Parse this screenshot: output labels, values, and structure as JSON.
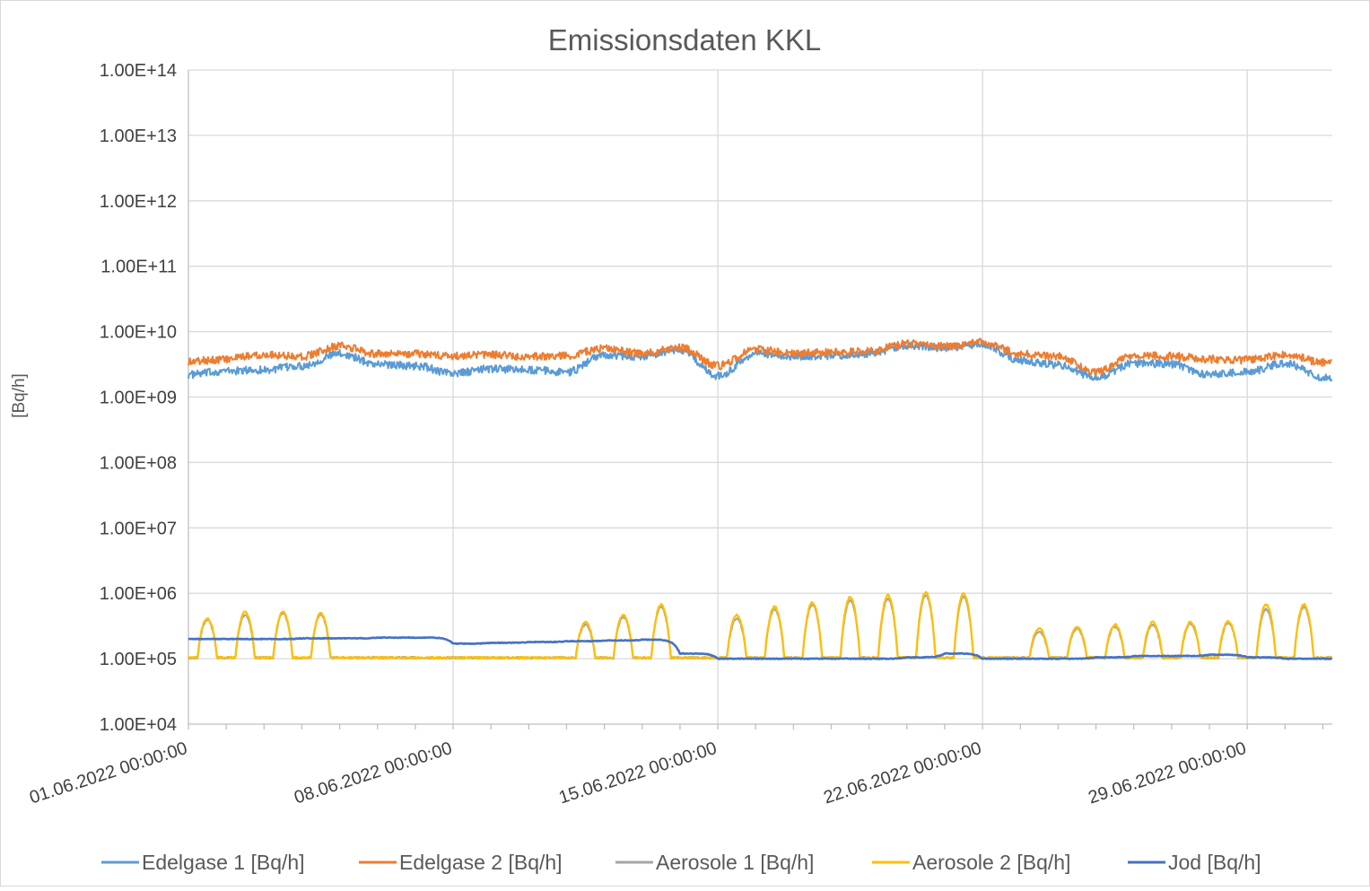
{
  "chart_data": {
    "type": "line",
    "title": "Emissionsdaten KKL",
    "xlabel": "",
    "ylabel": "[Bq/h]",
    "y_scale": "log",
    "ylim": [
      10000,
      100000000000000
    ],
    "xlim": [
      "01.06.2022 00:00:00",
      "01.07.2022 06:00:00"
    ],
    "y_ticks": [
      "1.00E+04",
      "1.00E+05",
      "1.00E+06",
      "1.00E+07",
      "1.00E+08",
      "1.00E+09",
      "1.00E+10",
      "1.00E+11",
      "1.00E+12",
      "1.00E+13",
      "1.00E+14"
    ],
    "x_ticks": [
      "01.06.2022 00:00:00",
      "08.06.2022 00:00:00",
      "15.06.2022 00:00:00",
      "22.06.2022 00:00:00",
      "29.06.2022 00:00:00"
    ],
    "grid": true,
    "legend_position": "bottom",
    "colors": {
      "Edelgase 1 [Bq/h]": "#5b9bd5",
      "Edelgase 2 [Bq/h]": "#ed7d31",
      "Aerosole 1 [Bq/h]": "#a5a5a5",
      "Aerosole 2 [Bq/h]": "#ffc000",
      "Jod [Bq/h]": "#4472c4"
    },
    "series": [
      {
        "name": "Edelgase 1 [Bq/h]",
        "x": [
          "01.06.2022",
          "02.06.2022",
          "03.06.2022",
          "04.06.2022",
          "05.06.2022",
          "06.06.2022",
          "07.06.2022",
          "08.06.2022",
          "09.06.2022",
          "10.06.2022",
          "11.06.2022",
          "12.06.2022",
          "13.06.2022",
          "14.06.2022",
          "15.06.2022",
          "16.06.2022",
          "17.06.2022",
          "18.06.2022",
          "19.06.2022",
          "20.06.2022",
          "21.06.2022",
          "22.06.2022",
          "23.06.2022",
          "24.06.2022",
          "25.06.2022",
          "26.06.2022",
          "27.06.2022",
          "28.06.2022",
          "29.06.2022",
          "30.06.2022",
          "01.07.2022"
        ],
        "values": [
          2200000000.0,
          2500000000.0,
          2600000000.0,
          3000000000.0,
          4600000000.0,
          3200000000.0,
          3000000000.0,
          2300000000.0,
          2700000000.0,
          2600000000.0,
          2400000000.0,
          4400000000.0,
          4200000000.0,
          5300000000.0,
          2100000000.0,
          4600000000.0,
          4200000000.0,
          4300000000.0,
          4600000000.0,
          6200000000.0,
          5700000000.0,
          6500000000.0,
          3600000000.0,
          3100000000.0,
          2000000000.0,
          3300000000.0,
          3200000000.0,
          2200000000.0,
          2400000000.0,
          3300000000.0,
          2000000000.0
        ]
      },
      {
        "name": "Edelgase 2 [Bq/h]",
        "x": [
          "01.06.2022",
          "02.06.2022",
          "03.06.2022",
          "04.06.2022",
          "05.06.2022",
          "06.06.2022",
          "07.06.2022",
          "08.06.2022",
          "09.06.2022",
          "10.06.2022",
          "11.06.2022",
          "12.06.2022",
          "13.06.2022",
          "14.06.2022",
          "15.06.2022",
          "16.06.2022",
          "17.06.2022",
          "18.06.2022",
          "19.06.2022",
          "20.06.2022",
          "21.06.2022",
          "22.06.2022",
          "23.06.2022",
          "24.06.2022",
          "25.06.2022",
          "26.06.2022",
          "27.06.2022",
          "28.06.2022",
          "29.06.2022",
          "30.06.2022",
          "01.07.2022"
        ],
        "values": [
          3500000000.0,
          3800000000.0,
          4500000000.0,
          4200000000.0,
          6000000000.0,
          4600000000.0,
          4600000000.0,
          4200000000.0,
          4400000000.0,
          4200000000.0,
          4300000000.0,
          5500000000.0,
          4600000000.0,
          5700000000.0,
          3000000000.0,
          5300000000.0,
          4600000000.0,
          4800000000.0,
          5000000000.0,
          6500000000.0,
          6000000000.0,
          6800000000.0,
          4600000000.0,
          4200000000.0,
          2400000000.0,
          4300000000.0,
          4200000000.0,
          3800000000.0,
          3700000000.0,
          4400000000.0,
          3400000000.0
        ]
      },
      {
        "name": "Aerosole 1 [Bq/h]",
        "x": [
          "01.06.2022",
          "02.06.2022",
          "03.06.2022",
          "04.06.2022",
          "05.06.2022",
          "06.06.2022",
          "07.06.2022",
          "08.06.2022",
          "09.06.2022",
          "10.06.2022",
          "11.06.2022",
          "12.06.2022",
          "13.06.2022",
          "14.06.2022",
          "15.06.2022",
          "16.06.2022",
          "17.06.2022",
          "18.06.2022",
          "19.06.2022",
          "20.06.2022",
          "21.06.2022",
          "22.06.2022",
          "23.06.2022",
          "24.06.2022",
          "25.06.2022",
          "26.06.2022",
          "27.06.2022",
          "28.06.2022",
          "29.06.2022",
          "30.06.2022",
          "01.07.2022"
        ],
        "values": [
          380000.0,
          450000.0,
          480000.0,
          460000.0,
          100000.0,
          100000.0,
          100000.0,
          100000.0,
          100000.0,
          100000.0,
          320000.0,
          420000.0,
          600000.0,
          100000.0,
          400000.0,
          550000.0,
          650000.0,
          750000.0,
          800000.0,
          900000.0,
          850000.0,
          100000.0,
          250000.0,
          280000.0,
          300000.0,
          320000.0,
          330000.0,
          340000.0,
          550000.0,
          600000.0,
          100000.0
        ]
      },
      {
        "name": "Aerosole 2 [Bq/h]",
        "x": [
          "01.06.2022",
          "02.06.2022",
          "03.06.2022",
          "04.06.2022",
          "05.06.2022",
          "06.06.2022",
          "07.06.2022",
          "08.06.2022",
          "09.06.2022",
          "10.06.2022",
          "11.06.2022",
          "12.06.2022",
          "13.06.2022",
          "14.06.2022",
          "15.06.2022",
          "16.06.2022",
          "17.06.2022",
          "18.06.2022",
          "19.06.2022",
          "20.06.2022",
          "21.06.2022",
          "22.06.2022",
          "23.06.2022",
          "24.06.2022",
          "25.06.2022",
          "26.06.2022",
          "27.06.2022",
          "28.06.2022",
          "29.06.2022",
          "30.06.2022",
          "01.07.2022"
        ],
        "values": [
          400000.0,
          500000.0,
          500000.0,
          480000.0,
          100000.0,
          100000.0,
          100000.0,
          100000.0,
          100000.0,
          100000.0,
          350000.0,
          450000.0,
          650000.0,
          100000.0,
          450000.0,
          600000.0,
          700000.0,
          850000.0,
          900000.0,
          1000000.0,
          950000.0,
          100000.0,
          280000.0,
          300000.0,
          320000.0,
          350000.0,
          350000.0,
          360000.0,
          650000.0,
          650000.0,
          100000.0
        ]
      },
      {
        "name": "Jod [Bq/h]",
        "x": [
          "01.06.2022",
          "02.06.2022",
          "03.06.2022",
          "04.06.2022",
          "05.06.2022",
          "06.06.2022",
          "07.06.2022",
          "08.06.2022",
          "09.06.2022",
          "10.06.2022",
          "11.06.2022",
          "12.06.2022",
          "13.06.2022",
          "14.06.2022",
          "15.06.2022",
          "16.06.2022",
          "17.06.2022",
          "18.06.2022",
          "19.06.2022",
          "20.06.2022",
          "21.06.2022",
          "22.06.2022",
          "23.06.2022",
          "24.06.2022",
          "25.06.2022",
          "26.06.2022",
          "27.06.2022",
          "28.06.2022",
          "29.06.2022",
          "30.06.2022",
          "01.07.2022"
        ],
        "values": [
          200000.0,
          200000.0,
          200000.0,
          205000.0,
          205000.0,
          210000.0,
          210000.0,
          170000.0,
          175000.0,
          180000.0,
          185000.0,
          190000.0,
          195000.0,
          120000.0,
          100000.0,
          100000.0,
          100000.0,
          100000.0,
          100000.0,
          105000.0,
          120000.0,
          100000.0,
          100000.0,
          100000.0,
          105000.0,
          110000.0,
          110000.0,
          115000.0,
          105000.0,
          100000.0,
          100000.0
        ]
      }
    ]
  }
}
